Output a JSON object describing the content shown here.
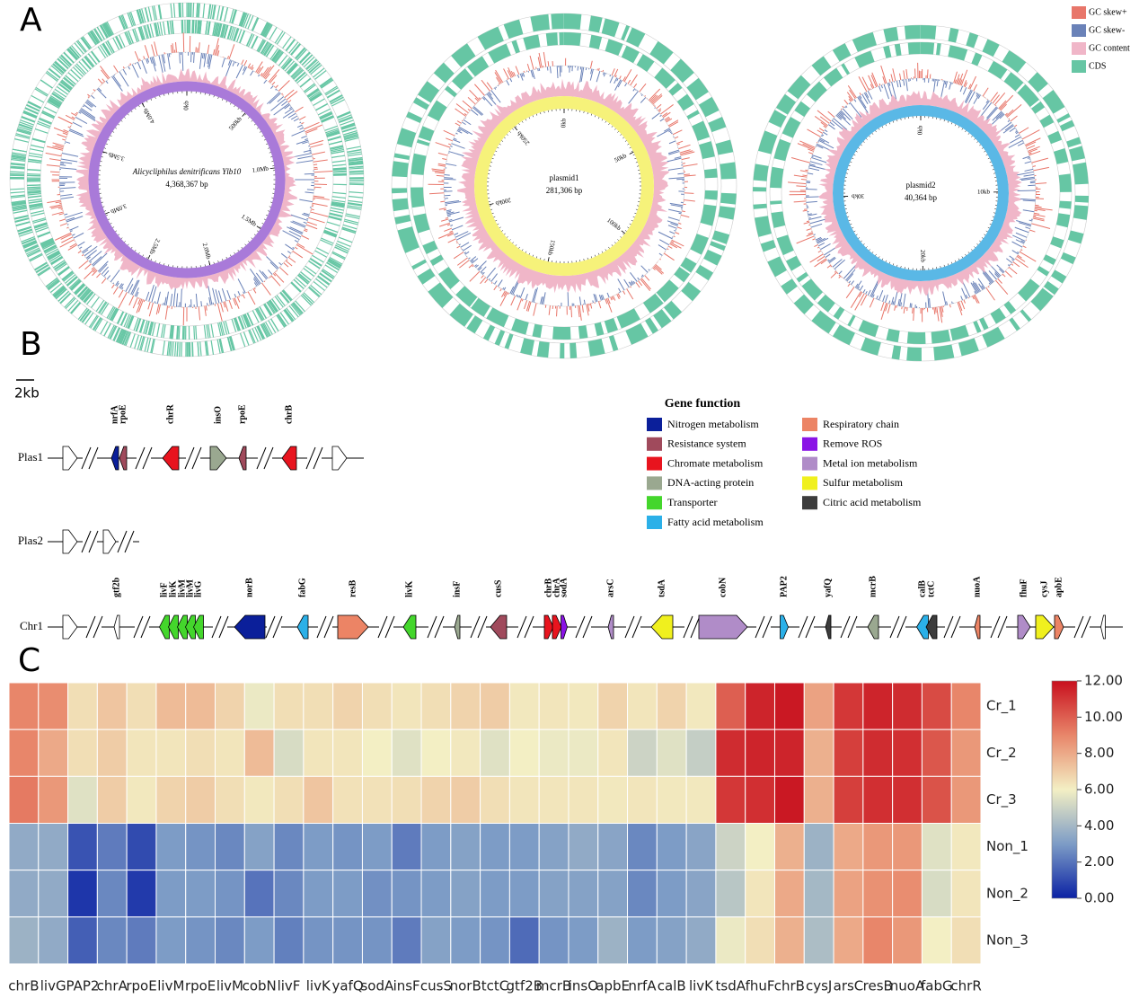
{
  "panel_a": {
    "label": "A",
    "genomes": [
      {
        "name": "Alicycliphilus denitrificans Ylb10",
        "length": {
          "value": 4368367,
          "label": "4,368,367 bp"
        },
        "ring_color": "#a97ad9",
        "ticks": [
          {
            "value": 0,
            "label": "0kb"
          },
          {
            "value": 500000,
            "label": "500kb"
          },
          {
            "value": 1000000,
            "label": "1.0Mb"
          },
          {
            "value": 1500000,
            "label": "1.5Mb"
          },
          {
            "value": 2000000,
            "label": "2.0Mb"
          },
          {
            "value": 2500000,
            "label": "2.5Mb"
          },
          {
            "value": 3000000,
            "label": "3.0Mb"
          },
          {
            "value": 3500000,
            "label": "3.5Mb"
          },
          {
            "value": 4000000,
            "label": "4.0Mb"
          }
        ]
      },
      {
        "name": "plasmid1",
        "length": {
          "value": 281306,
          "label": "281,306 bp"
        },
        "ring_color": "#f6f27a",
        "ticks": [
          {
            "value": 0,
            "label": "0kb"
          },
          {
            "value": 50000,
            "label": "50kb"
          },
          {
            "value": 100000,
            "label": "100kb"
          },
          {
            "value": 150000,
            "label": "150kb"
          },
          {
            "value": 200000,
            "label": "200kb"
          },
          {
            "value": 250000,
            "label": "250kb"
          }
        ]
      },
      {
        "name": "plasmid2",
        "length": {
          "value": 40364,
          "label": "40,364 bp"
        },
        "ring_color": "#5ab8e6",
        "ticks": [
          {
            "value": 0,
            "label": "0kb"
          },
          {
            "value": 10000,
            "label": "10kb"
          },
          {
            "value": 20000,
            "label": "20kb"
          },
          {
            "value": 30000,
            "label": "30kb"
          }
        ]
      }
    ],
    "legend": [
      {
        "name": "GC skew+",
        "color": "#e8766a"
      },
      {
        "name": "GC skew-",
        "color": "#6a82b8"
      },
      {
        "name": "GC content",
        "color": "#f0b6c8"
      },
      {
        "name": "CDS",
        "color": "#66c6a4"
      }
    ]
  },
  "panel_b": {
    "label": "B",
    "scale": "2kb",
    "legend_title": "Gene function",
    "functions": [
      {
        "name": "Nitrogen metabolism",
        "color": "#0b1f9a"
      },
      {
        "name": "Resistance system",
        "color": "#a04a5c"
      },
      {
        "name": "Chromate metabolism",
        "color": "#e8141e"
      },
      {
        "name": "DNA-acting protein",
        "color": "#9aa890"
      },
      {
        "name": "Transporter",
        "color": "#44d62c"
      },
      {
        "name": "Fatty acid metabolism",
        "color": "#2bb0e8"
      },
      {
        "name": "Respiratory chain",
        "color": "#ec8465"
      },
      {
        "name": "Remove ROS",
        "color": "#8a14e6"
      },
      {
        "name": "Metal ion metabolism",
        "color": "#b08cc8"
      },
      {
        "name": "Sulfur metabolism",
        "color": "#f0f01e"
      },
      {
        "name": "Citric acid metabolism",
        "color": "#3c3c3c"
      }
    ],
    "tracks": [
      {
        "name": "Plas1",
        "genes": [
          {
            "name": "nrfA",
            "function": 0
          },
          {
            "name": "rpoE",
            "function": 1
          },
          {
            "name": "chrR",
            "function": 2
          },
          {
            "name": "insO",
            "function": 3
          },
          {
            "name": "rpoE",
            "function": 1
          },
          {
            "name": "chrB",
            "function": 2
          }
        ]
      },
      {
        "name": "Plas2",
        "genes": []
      },
      {
        "name": "Chr1",
        "genes": [
          {
            "name": "gtf2b",
            "function": null
          },
          {
            "name": "livF",
            "function": 4
          },
          {
            "name": "livK",
            "function": 4
          },
          {
            "name": "livM",
            "function": 4
          },
          {
            "name": "livM",
            "function": 4
          },
          {
            "name": "livG",
            "function": 4
          },
          {
            "name": "norB",
            "function": 0
          },
          {
            "name": "fabG",
            "function": 5
          },
          {
            "name": "resB",
            "function": 6
          },
          {
            "name": "livK",
            "function": 4
          },
          {
            "name": "insF",
            "function": 3
          },
          {
            "name": "cusS",
            "function": 1
          },
          {
            "name": "chrB",
            "function": 2
          },
          {
            "name": "chrA",
            "function": 2
          },
          {
            "name": "sodA",
            "function": 7
          },
          {
            "name": "arsC",
            "function": 8
          },
          {
            "name": "tsdA",
            "function": 9
          },
          {
            "name": "cobN",
            "function": 8
          },
          {
            "name": "PAP2",
            "function": 5
          },
          {
            "name": "yafQ",
            "function": 10
          },
          {
            "name": "mcrB",
            "function": 3
          },
          {
            "name": "calB",
            "function": 5
          },
          {
            "name": "tctC",
            "function": 10
          },
          {
            "name": "nuoA",
            "function": 6
          },
          {
            "name": "fhuF",
            "function": 8
          },
          {
            "name": "cysJ",
            "function": 9
          },
          {
            "name": "apbE",
            "function": 6
          }
        ]
      }
    ]
  },
  "chart_data": {
    "type": "heatmap",
    "label": "C",
    "categories": [
      "chrB",
      "livG",
      "PAP2",
      "chrA",
      "rpoE",
      "livM",
      "rpoE",
      "livM",
      "cobN",
      "livF",
      "livK",
      "yafQ",
      "sodA",
      "insF",
      "cusS",
      "norB",
      "tctC",
      "gtf2B",
      "mcrB",
      "insO",
      "apbE",
      "nrfA",
      "calB",
      "livK",
      "tsdA",
      "fhuF",
      "chrB",
      "cysJ",
      "arsC",
      "resB",
      "nuoA",
      "fabG",
      "chrR"
    ],
    "rows": [
      "Cr_1",
      "Cr_2",
      "Cr_3",
      "Non_1",
      "Non_2",
      "Non_3"
    ],
    "values": [
      [
        9,
        8.8,
        6.5,
        7.2,
        6.5,
        7.5,
        7.5,
        6.8,
        5.8,
        6.5,
        6.5,
        6.8,
        6.5,
        6.3,
        6.5,
        6.8,
        7,
        6.2,
        6.3,
        6.2,
        6.8,
        6.3,
        6.8,
        6.2,
        10,
        11.5,
        11.8,
        8.2,
        11,
        11.5,
        11.3,
        10.5,
        9
      ],
      [
        9,
        8,
        6.5,
        7,
        6.3,
        6.3,
        6.5,
        6.3,
        7.5,
        5.3,
        6.3,
        6.3,
        6,
        5.5,
        6,
        6.2,
        5.5,
        6,
        5.8,
        5.8,
        6.3,
        5,
        5.5,
        4.8,
        11.3,
        11.5,
        11.5,
        7.8,
        10.8,
        11.3,
        11.2,
        10.2,
        8.5
      ],
      [
        9.3,
        8.5,
        5.5,
        7,
        6.2,
        6.8,
        7,
        6.5,
        6.2,
        6.5,
        7.2,
        6.4,
        6.4,
        6.5,
        6.8,
        7,
        6.5,
        6.3,
        6.3,
        6.3,
        6.2,
        6.3,
        6.2,
        6.2,
        11,
        11.2,
        11.8,
        7.8,
        10.8,
        11.2,
        11.2,
        10.3,
        8.5
      ],
      [
        3.5,
        3.5,
        1.2,
        2.2,
        1,
        3,
        2.8,
        2.5,
        3.2,
        2.5,
        3,
        2.8,
        3,
        2.2,
        3,
        3.2,
        3,
        3,
        3.2,
        3.5,
        3.3,
        2.5,
        3,
        3.3,
        5,
        6,
        7.8,
        3.8,
        8,
        8.5,
        8.5,
        5.5,
        6.2
      ],
      [
        3.5,
        3.5,
        0.5,
        2.5,
        0.6,
        3,
        3,
        2.8,
        2,
        2.5,
        3,
        3,
        2.7,
        2.8,
        3,
        3.2,
        3,
        3,
        3.2,
        3.2,
        3.2,
        2.5,
        3,
        3.3,
        4.5,
        6.3,
        8,
        4,
        8.2,
        8.7,
        8.8,
        5.3,
        6.3
      ],
      [
        3.8,
        3.5,
        1.5,
        2.5,
        2.2,
        3,
        2.8,
        2.5,
        3,
        2.3,
        2.8,
        2.8,
        2.8,
        2.2,
        3.2,
        3,
        2.8,
        1.8,
        2.8,
        3,
        3.8,
        3,
        3.2,
        3.5,
        5.8,
        6.5,
        7.8,
        4.2,
        8,
        9,
        8.5,
        6,
        6.5
      ]
    ],
    "colormap": [
      "#0b22a4",
      "#7d9cc6",
      "#f3efc4",
      "#e8866a",
      "#c8101e"
    ],
    "clim": [
      0,
      12
    ],
    "cticks": [
      {
        "value": 0,
        "label": "0.00"
      },
      {
        "value": 2,
        "label": "2.00"
      },
      {
        "value": 4,
        "label": "4.00"
      },
      {
        "value": 6,
        "label": "6.00"
      },
      {
        "value": 8,
        "label": "8.00"
      },
      {
        "value": 10,
        "label": "10.00"
      },
      {
        "value": 12,
        "label": "12.00"
      }
    ]
  }
}
